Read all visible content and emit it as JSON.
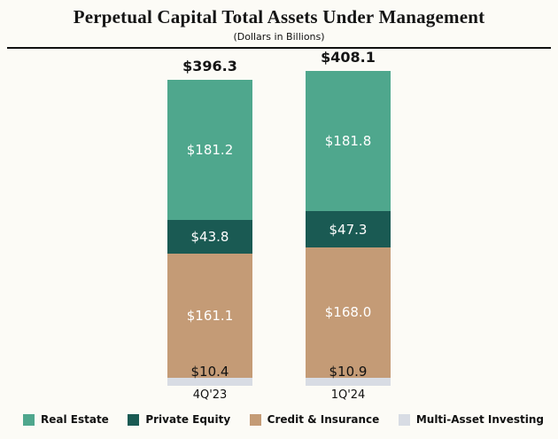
{
  "title": "Perpetual Capital Total Assets Under Management",
  "subtitle": "(Dollars in Billions)",
  "chart_data": {
    "type": "bar",
    "stacked": true,
    "categories": [
      "4Q'23",
      "1Q'24"
    ],
    "totals": [
      "$396.3",
      "$408.1"
    ],
    "series": [
      {
        "name": "Real Estate",
        "values": [
          181.2,
          181.8
        ],
        "labels": [
          "$181.2",
          "$181.8"
        ],
        "color": "#4fa78d",
        "label_color": "#ffffff"
      },
      {
        "name": "Private Equity",
        "values": [
          43.8,
          47.3
        ],
        "labels": [
          "$43.8",
          "$47.3"
        ],
        "color": "#1a5a53",
        "label_color": "#ffffff"
      },
      {
        "name": "Credit & Insurance",
        "values": [
          161.1,
          168.0
        ],
        "labels": [
          "$161.1",
          "$168.0"
        ],
        "color": "#c49b76",
        "label_color": "#ffffff"
      },
      {
        "name": "Multi-Asset Investing",
        "values": [
          10.4,
          10.9
        ],
        "labels": [
          "$10.4",
          "$10.9"
        ],
        "color": "#d8dce4",
        "label_color": "#111111"
      }
    ],
    "legend": [
      "Real Estate",
      "Private Equity",
      "Credit & Insurance",
      "Multi-Asset Investing"
    ],
    "ylim": [
      0,
      420
    ],
    "grid": false,
    "legend_position": "bottom"
  }
}
